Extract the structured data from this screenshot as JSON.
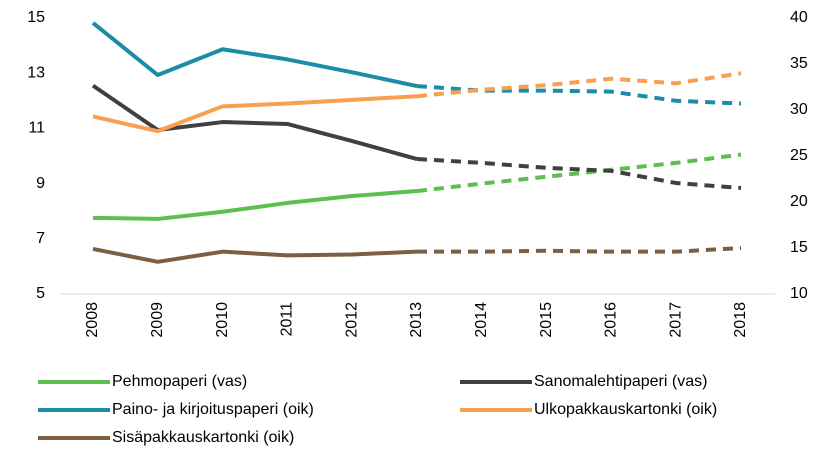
{
  "chart_data": {
    "type": "line",
    "categories": [
      "2008",
      "2009",
      "2010",
      "2011",
      "2012",
      "2013",
      "2014",
      "2015",
      "2016",
      "2017",
      "2018"
    ],
    "dashed_from": "2013",
    "ylim": [
      5,
      15
    ],
    "yticks": [
      5,
      7,
      9,
      11,
      13,
      15
    ],
    "y2lim": [
      10,
      40
    ],
    "y2ticks": [
      10,
      15,
      20,
      25,
      30,
      35,
      40
    ],
    "series": [
      {
        "name": "Pehmopaperi (vas)",
        "color": "#5cbf4f",
        "values": [
          7.76,
          7.72,
          7.98,
          8.3,
          8.55,
          8.73,
          9.0,
          9.25,
          9.5,
          9.75,
          10.05
        ]
      },
      {
        "name": "Sanomalehtipaperi (vas)",
        "color": "#404040",
        "values": [
          12.55,
          10.94,
          11.23,
          11.16,
          10.54,
          9.89,
          9.75,
          9.57,
          9.46,
          9.02,
          8.84
        ]
      },
      {
        "name": "Paino- ja kirjoituspaperi (oik)",
        "color": "#1c8ca7",
        "axis": "y2",
        "values": [
          39.46,
          33.8,
          36.6,
          35.5,
          34.1,
          32.6,
          32.1,
          32.1,
          32.0,
          31.0,
          30.7
        ]
      },
      {
        "name": "Ulkopakkauskartonki (oik)",
        "color": "#f7a04f",
        "axis": "y2",
        "values": [
          29.3,
          27.7,
          30.4,
          30.7,
          31.1,
          31.5,
          32.2,
          32.7,
          33.4,
          32.9,
          34.0
        ]
      },
      {
        "name": "Sisäpakkauskartonki (oik)",
        "color": "#7a5f43",
        "axis": "y2",
        "values": [
          14.9,
          13.5,
          14.6,
          14.2,
          14.3,
          14.6,
          14.6,
          14.7,
          14.6,
          14.6,
          15.0
        ]
      }
    ]
  }
}
